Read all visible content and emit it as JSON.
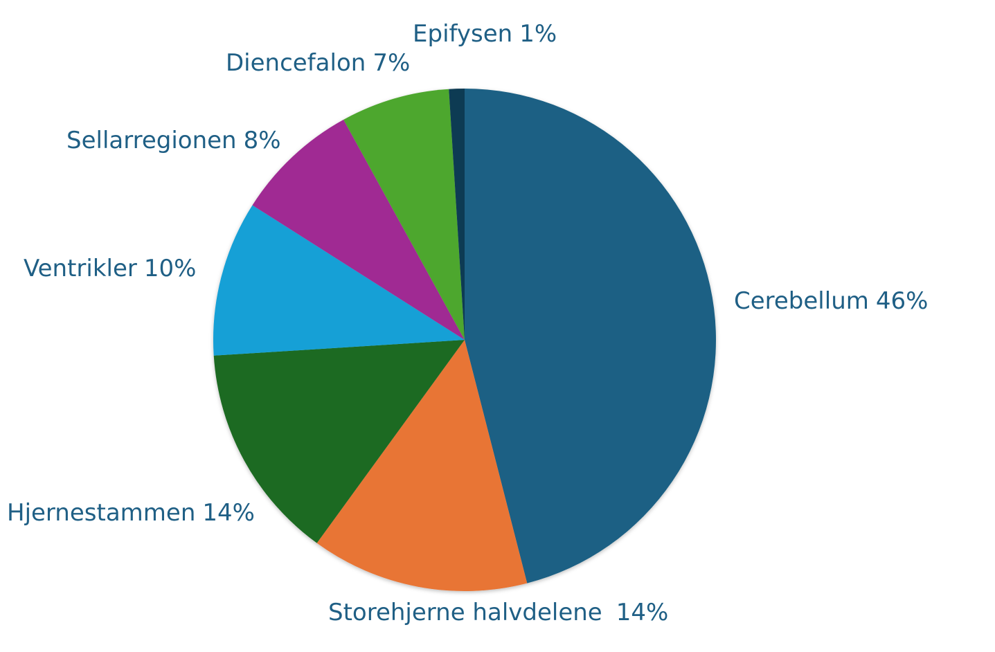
{
  "chart_data": {
    "type": "pie",
    "categories": [
      "Cerebellum",
      "Storehjerne halvdelene",
      "Hjernestammen",
      "Ventrikler",
      "Sellarregionen",
      "Diencefalon",
      "Epifysen"
    ],
    "values": [
      46,
      14,
      14,
      10,
      8,
      7,
      1
    ],
    "value_labels": [
      "46%",
      "14%",
      "14%",
      "10%",
      "8%",
      "7%",
      "1%"
    ],
    "colors": [
      "#1a6184",
      "#e87435",
      "#1e6b24",
      "#13a0d6",
      "#a02b93",
      "#4ea72e",
      "#0d3a52"
    ]
  }
}
